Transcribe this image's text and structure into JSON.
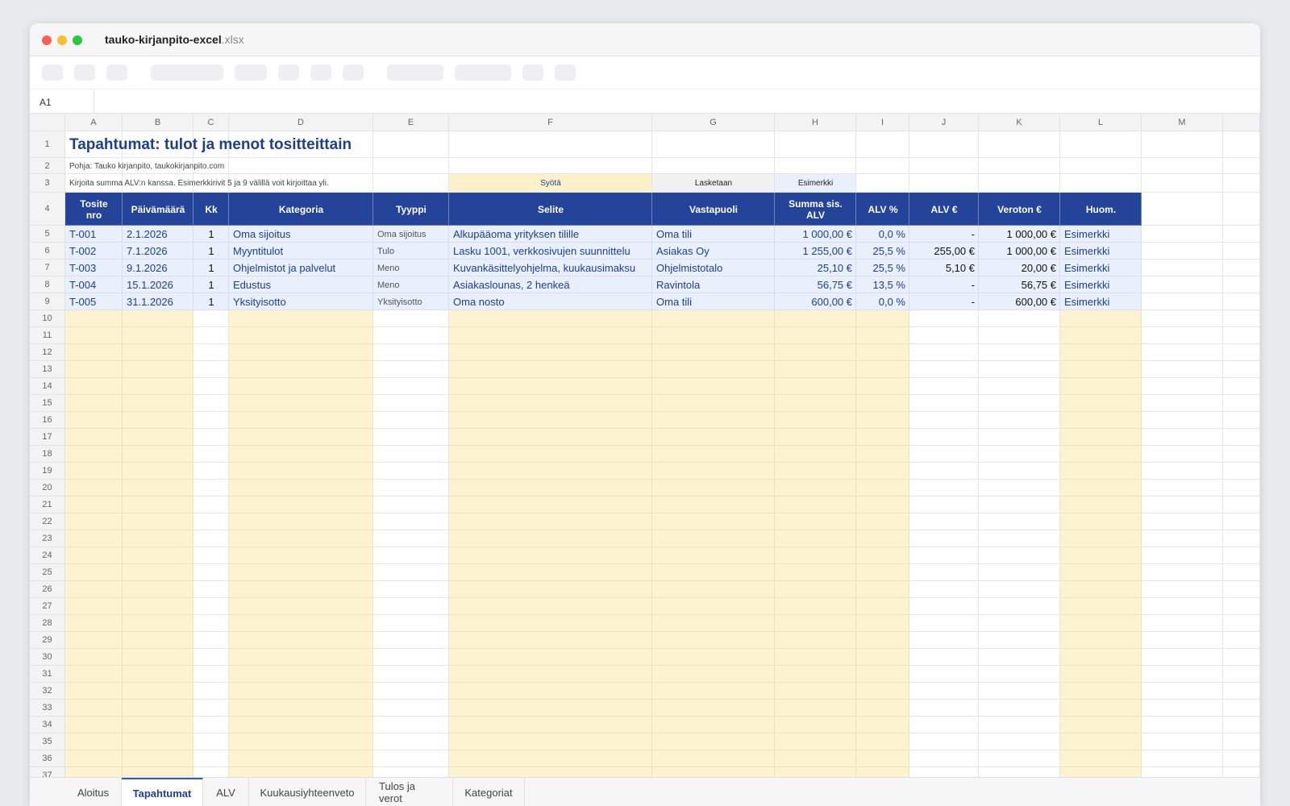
{
  "window": {
    "filename": "tauko-kirjanpito-excel",
    "extension": ".xlsx"
  },
  "name_box": "A1",
  "columns": [
    "A",
    "B",
    "C",
    "D",
    "E",
    "F",
    "G",
    "H",
    "I",
    "J",
    "K",
    "L",
    "M"
  ],
  "row_numbers": [
    1,
    2,
    3,
    4,
    5,
    6,
    7,
    8,
    9,
    10,
    11,
    12,
    13,
    14,
    15,
    16,
    17,
    18,
    19,
    20,
    21,
    22,
    23,
    24,
    25,
    26,
    27,
    28,
    29,
    30,
    31,
    32,
    33,
    34,
    35,
    36,
    37
  ],
  "sheet": {
    "title": "Tapahtumat: tulot ja menot tositteittain",
    "source": "Pohja: Tauko kirjanpito, taukokirjanpito.com",
    "instructions": "Kirjoita summa ALV:n kanssa. Esimerkkirivit 5 ja 9 välillä voit kirjoittaa yli.",
    "legend": [
      "Syötä",
      "Lasketaan",
      "Esimerkki"
    ],
    "headers": [
      "Tosite nro",
      "Päivämäärä",
      "Kk",
      "Kategoria",
      "Tyyppi",
      "Selite",
      "Vastapuoli",
      "Summa sis. ALV",
      "ALV %",
      "ALV €",
      "Veroton €",
      "Huom."
    ],
    "rows": [
      [
        "T-001",
        "2.1.2026",
        "1",
        "Oma sijoitus",
        "Oma sijoitus",
        "Alkupääoma yrityksen tilille",
        "Oma tili",
        "1 000,00 €",
        "0,0 %",
        "-",
        "1 000,00 €",
        "Esimerkki"
      ],
      [
        "T-002",
        "7.1.2026",
        "1",
        "Myyntitulot",
        "Tulo",
        "Lasku 1001, verkkosivujen suunnittelu",
        "Asiakas Oy",
        "1 255,00 €",
        "25,5 %",
        "255,00 €",
        "1 000,00 €",
        "Esimerkki"
      ],
      [
        "T-003",
        "9.1.2026",
        "1",
        "Ohjelmistot ja palvelut",
        "Meno",
        "Kuvankäsittelyohjelma, kuukausimaksu",
        "Ohjelmistotalo",
        "25,10 €",
        "25,5 %",
        "5,10 €",
        "20,00 €",
        "Esimerkki"
      ],
      [
        "T-004",
        "15.1.2026",
        "1",
        "Edustus",
        "Meno",
        "Asiakaslounas, 2 henkeä",
        "Ravintola",
        "56,75 €",
        "13,5 %",
        "-",
        "56,75 €",
        "Esimerkki"
      ],
      [
        "T-005",
        "31.1.2026",
        "1",
        "Yksityisotto",
        "Yksityisotto",
        "Oma nosto",
        "Oma tili",
        "600,00 €",
        "0,0 %",
        "-",
        "600,00 €",
        "Esimerkki"
      ]
    ]
  },
  "tabs": [
    "Aloitus",
    "Tapahtumat",
    "ALV",
    "Kuukausiyhteenveto",
    "Tulos ja verot",
    "Kategoriat"
  ],
  "active_tab": 1
}
